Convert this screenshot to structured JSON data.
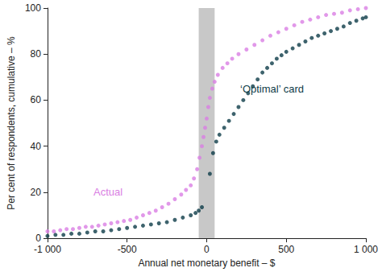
{
  "chart_data": {
    "type": "scatter",
    "x_label": "Annual net monetary benefit – $",
    "y_label": "Per cent of respondents, cumulative – %",
    "xlim": [
      -1000,
      1000
    ],
    "xticks": [
      {
        "value": -1000,
        "label": "-1 000"
      },
      -500,
      0,
      500,
      {
        "value": 1000,
        "label": "1 000"
      }
    ],
    "ylim": [
      0,
      100
    ],
    "yticks": [
      0,
      20,
      40,
      60,
      80,
      100
    ],
    "grid": false,
    "shaded_x": [
      -50,
      50
    ],
    "series": [
      {
        "name": "Actual",
        "color": "#d97ee3",
        "marker": "circle",
        "x": [
          -1000,
          -960,
          -920,
          -880,
          -840,
          -800,
          -760,
          -720,
          -680,
          -640,
          -600,
          -560,
          -520,
          -480,
          -440,
          -400,
          -360,
          -320,
          -280,
          -240,
          -200,
          -160,
          -130,
          -100,
          -80,
          -60,
          -45,
          -30,
          -20,
          -10,
          0,
          10,
          20,
          35,
          50,
          70,
          100,
          130,
          160,
          200,
          250,
          300,
          350,
          400,
          450,
          500,
          550,
          600,
          650,
          700,
          750,
          800,
          850,
          900,
          950,
          1000
        ],
        "values": [
          3,
          3,
          3.5,
          4,
          4,
          4.5,
          5,
          5,
          5.5,
          6,
          6.5,
          7,
          7.5,
          8,
          9,
          10,
          11,
          12,
          13.5,
          15,
          17,
          19,
          21,
          23,
          26,
          30,
          35,
          40,
          44,
          48,
          52,
          57,
          61,
          65,
          68,
          71,
          74,
          76,
          78,
          80,
          82,
          84,
          86,
          88,
          89.5,
          91,
          92.5,
          94,
          95,
          96,
          97,
          97.5,
          98,
          99,
          99.5,
          100
        ]
      },
      {
        "name": "‘Optimal’ card",
        "color": "#0e3c48",
        "marker": "circle",
        "x": [
          -1000,
          -950,
          -900,
          -850,
          -800,
          -750,
          -700,
          -650,
          -600,
          -550,
          -500,
          -450,
          -400,
          -350,
          -300,
          -250,
          -200,
          -150,
          -100,
          -70,
          -50,
          -30,
          20,
          40,
          60,
          80,
          110,
          140,
          170,
          200,
          230,
          260,
          290,
          320,
          350,
          380,
          410,
          440,
          470,
          500,
          540,
          580,
          620,
          660,
          700,
          740,
          780,
          820,
          860,
          900,
          940,
          980,
          1000
        ],
        "values": [
          1,
          1.5,
          1.5,
          2,
          2,
          2.5,
          3,
          3,
          3.5,
          4,
          4.5,
          5,
          5.5,
          6,
          6.5,
          7,
          8,
          9,
          10,
          11,
          12,
          13.5,
          28,
          37,
          42,
          45,
          48,
          51,
          54,
          57,
          60,
          63,
          66,
          69,
          72,
          74,
          76,
          78,
          79.5,
          81,
          82.5,
          84,
          85.5,
          87,
          88,
          89,
          90,
          91,
          92,
          93.5,
          94.5,
          95.5,
          96
        ]
      }
    ]
  }
}
